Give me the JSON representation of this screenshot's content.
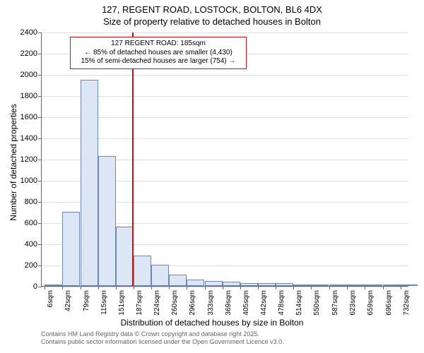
{
  "title_line1": "127, REGENT ROAD, LOSTOCK, BOLTON, BL6 4DX",
  "title_line2": "Size of property relative to detached houses in Bolton",
  "ylabel": "Number of detached properties",
  "xlabel": "Distribution of detached houses by size in Bolton",
  "footer_line1": "Contains HM Land Registry data © Crown copyright and database right 2025.",
  "footer_line2": "Contains public sector information licensed under the Open Government Licence v3.0.",
  "chart": {
    "type": "histogram",
    "ylim": [
      0,
      2400
    ],
    "yticks": [
      0,
      200,
      400,
      600,
      800,
      1000,
      1200,
      1400,
      1600,
      1800,
      2000,
      2200,
      2400
    ],
    "x_labels": [
      "6sqm",
      "42sqm",
      "79sqm",
      "115sqm",
      "151sqm",
      "187sqm",
      "224sqm",
      "260sqm",
      "296sqm",
      "333sqm",
      "369sqm",
      "405sqm",
      "442sqm",
      "478sqm",
      "514sqm",
      "550sqm",
      "587sqm",
      "623sqm",
      "659sqm",
      "696sqm",
      "732sqm"
    ],
    "x_positions": [
      6,
      42,
      79,
      115,
      151,
      187,
      224,
      260,
      296,
      333,
      369,
      405,
      442,
      478,
      514,
      550,
      587,
      623,
      659,
      696,
      732
    ],
    "x_range": [
      0,
      750
    ],
    "values": [
      0,
      700,
      1950,
      1230,
      560,
      290,
      200,
      110,
      60,
      50,
      40,
      30,
      30,
      25,
      15,
      10,
      8,
      5,
      5,
      3,
      3
    ],
    "bar_fill": "#dce6f4",
    "bar_stroke": "#6d88b5",
    "grid_color": "#dddddd",
    "background": "#ffffff",
    "marker": {
      "x": 185,
      "color": "#d01010",
      "line1": "127 REGENT ROAD: 185sqm",
      "line2": "← 85% of detached houses are smaller (4,430)",
      "line3": "15% of semi-detached houses are larger (754) →"
    }
  }
}
